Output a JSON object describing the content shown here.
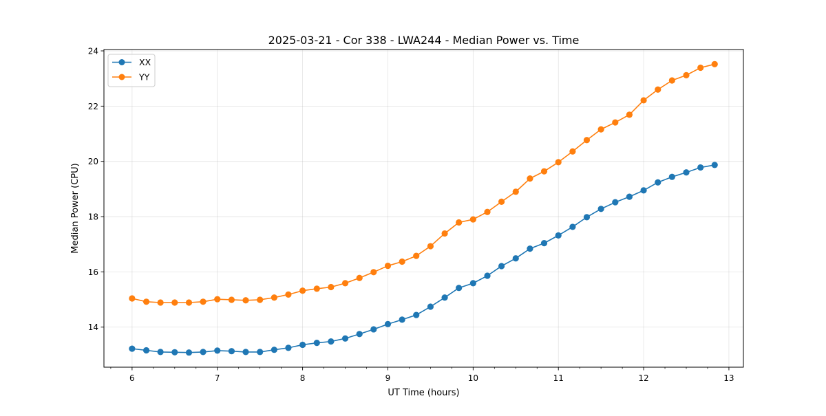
{
  "chart_data": {
    "type": "line",
    "title": "2025-03-21 - Cor 338 - LWA244 - Median Power vs. Time",
    "xlabel": "UT Time (hours)",
    "ylabel": "Median Power (CPU)",
    "xlim": [
      5.67,
      13.17
    ],
    "ylim": [
      12.55,
      24.05
    ],
    "xticks": [
      6,
      7,
      8,
      9,
      10,
      11,
      12,
      13
    ],
    "yticks": [
      14,
      16,
      18,
      20,
      22,
      24
    ],
    "x_minor_step": 0.25,
    "grid": true,
    "legend_position": "top-left",
    "x": [
      6.0,
      6.167,
      6.333,
      6.5,
      6.667,
      6.833,
      7.0,
      7.167,
      7.333,
      7.5,
      7.667,
      7.833,
      8.0,
      8.167,
      8.333,
      8.5,
      8.667,
      8.833,
      9.0,
      9.167,
      9.333,
      9.5,
      9.667,
      9.833,
      10.0,
      10.167,
      10.333,
      10.5,
      10.667,
      10.833,
      11.0,
      11.167,
      11.333,
      11.5,
      11.667,
      11.833,
      12.0,
      12.167,
      12.333,
      12.5,
      12.667,
      12.833
    ],
    "series": [
      {
        "name": "XX",
        "color": "#1f77b4",
        "values": [
          13.22,
          13.16,
          13.1,
          13.09,
          13.08,
          13.1,
          13.15,
          13.13,
          13.1,
          13.1,
          13.18,
          13.25,
          13.36,
          13.43,
          13.48,
          13.59,
          13.75,
          13.92,
          14.11,
          14.27,
          14.44,
          14.74,
          15.07,
          15.42,
          15.59,
          15.86,
          16.21,
          16.49,
          16.84,
          17.04,
          17.32,
          17.63,
          17.98,
          18.28,
          18.52,
          18.72,
          18.95,
          19.24,
          19.44,
          19.6,
          19.78,
          19.87
        ]
      },
      {
        "name": "YY",
        "color": "#ff7f0e",
        "values": [
          15.04,
          14.92,
          14.89,
          14.89,
          14.89,
          14.92,
          15.01,
          14.99,
          14.97,
          14.99,
          15.07,
          15.18,
          15.32,
          15.39,
          15.45,
          15.59,
          15.78,
          15.99,
          16.22,
          16.37,
          16.58,
          16.93,
          17.39,
          17.79,
          17.9,
          18.17,
          18.54,
          18.9,
          19.38,
          19.64,
          19.97,
          20.36,
          20.77,
          21.16,
          21.41,
          21.69,
          22.21,
          22.6,
          22.93,
          23.12,
          23.39,
          23.52
        ]
      }
    ]
  }
}
